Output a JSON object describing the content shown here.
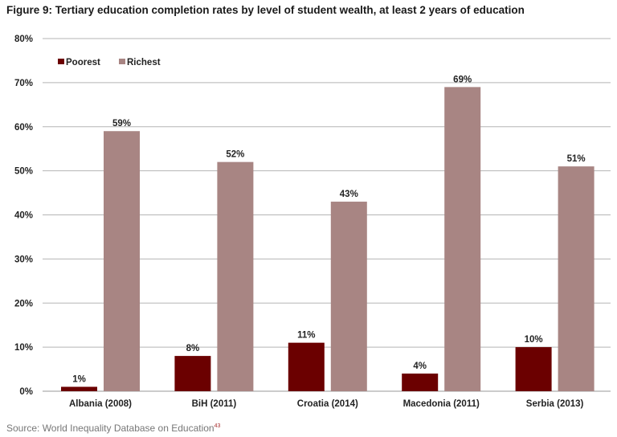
{
  "chart_data": {
    "type": "bar",
    "title": "Figure 9: Tertiary education completion rates by level of student wealth, at least 2 years of education",
    "categories": [
      "Albania (2008)",
      "BiH (2011)",
      "Croatia (2014)",
      "Macedonia (2011)",
      "Serbia (2013)"
    ],
    "series": [
      {
        "name": "Poorest",
        "color": "#6b0000",
        "values": [
          1,
          8,
          11,
          4,
          10
        ]
      },
      {
        "name": "Richest",
        "color": "#a88583",
        "values": [
          59,
          52,
          43,
          69,
          51
        ]
      }
    ],
    "ylim": [
      0,
      80
    ],
    "yticks": [
      0,
      10,
      20,
      30,
      40,
      50,
      60,
      70,
      80
    ],
    "value_suffix": "%",
    "xlabel": "",
    "ylabel": "",
    "grid": true,
    "legend_position": "top-left",
    "source": "Source: World Inequality Database on Education",
    "source_footnote": "43"
  }
}
